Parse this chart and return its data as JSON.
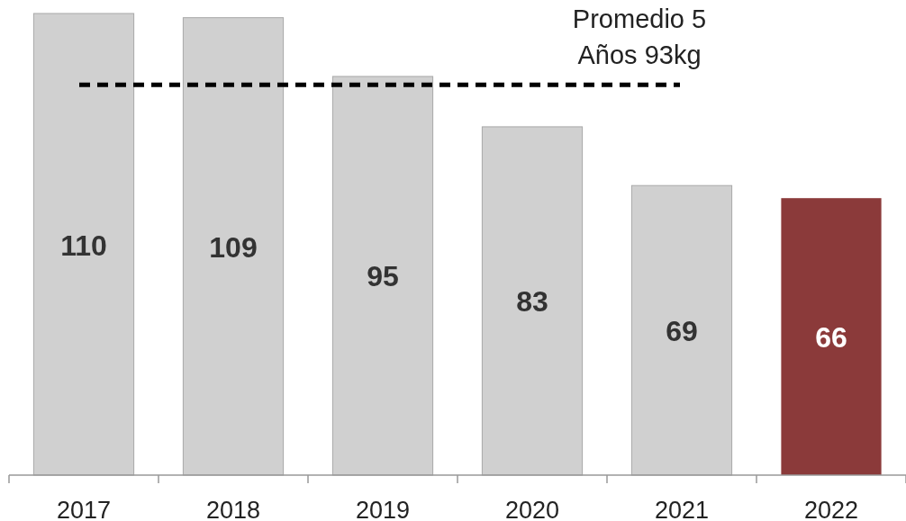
{
  "chart_data": {
    "type": "bar",
    "categories": [
      "2017",
      "2018",
      "2019",
      "2020",
      "2021",
      "2022"
    ],
    "values": [
      110,
      109,
      95,
      83,
      69,
      66
    ],
    "colors": [
      "#d0d0d0",
      "#d0d0d0",
      "#d0d0d0",
      "#d0d0d0",
      "#d0d0d0",
      "#8b3a3a"
    ],
    "data_labels": true,
    "ref_lines": [
      {
        "axis": "y",
        "value": 93,
        "label": "Promedio 5\nAños 93kg",
        "color": "#000000",
        "line_style": "dashed"
      }
    ]
  }
}
